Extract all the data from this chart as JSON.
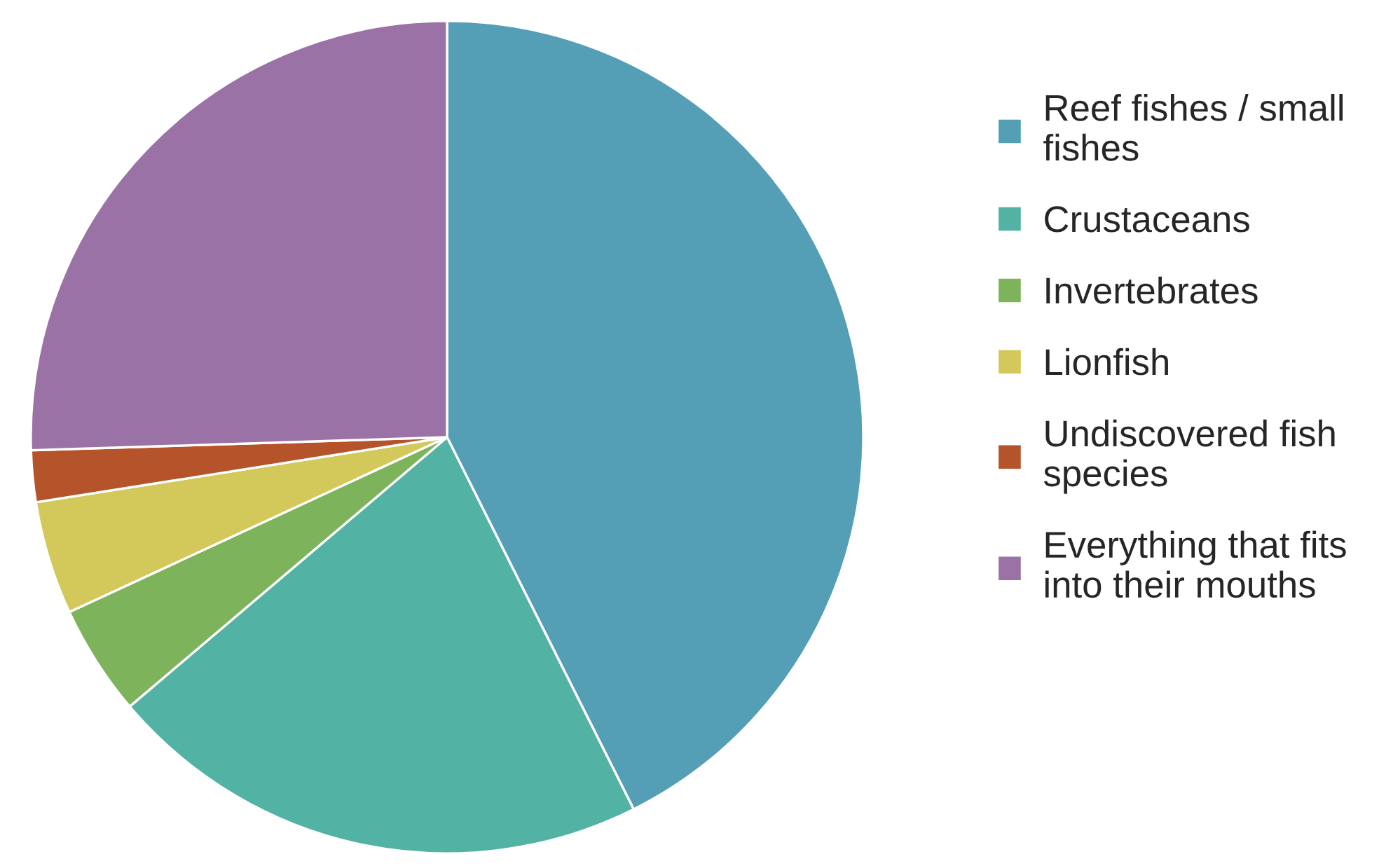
{
  "chart_data": {
    "type": "pie",
    "categories": [
      "Reef fishes / small fishes",
      "Crustaceans",
      "Invertebrates",
      "Lionfish",
      "Undiscovered fish species",
      "Everything that fits into their mouths"
    ],
    "values": [
      42.6,
      21.2,
      4.3,
      4.4,
      2.0,
      25.5
    ],
    "colors": [
      "#559fb6",
      "#52b3a4",
      "#7db35a",
      "#d3c85a",
      "#b5532a",
      "#9b72a6"
    ],
    "legend": "right"
  }
}
